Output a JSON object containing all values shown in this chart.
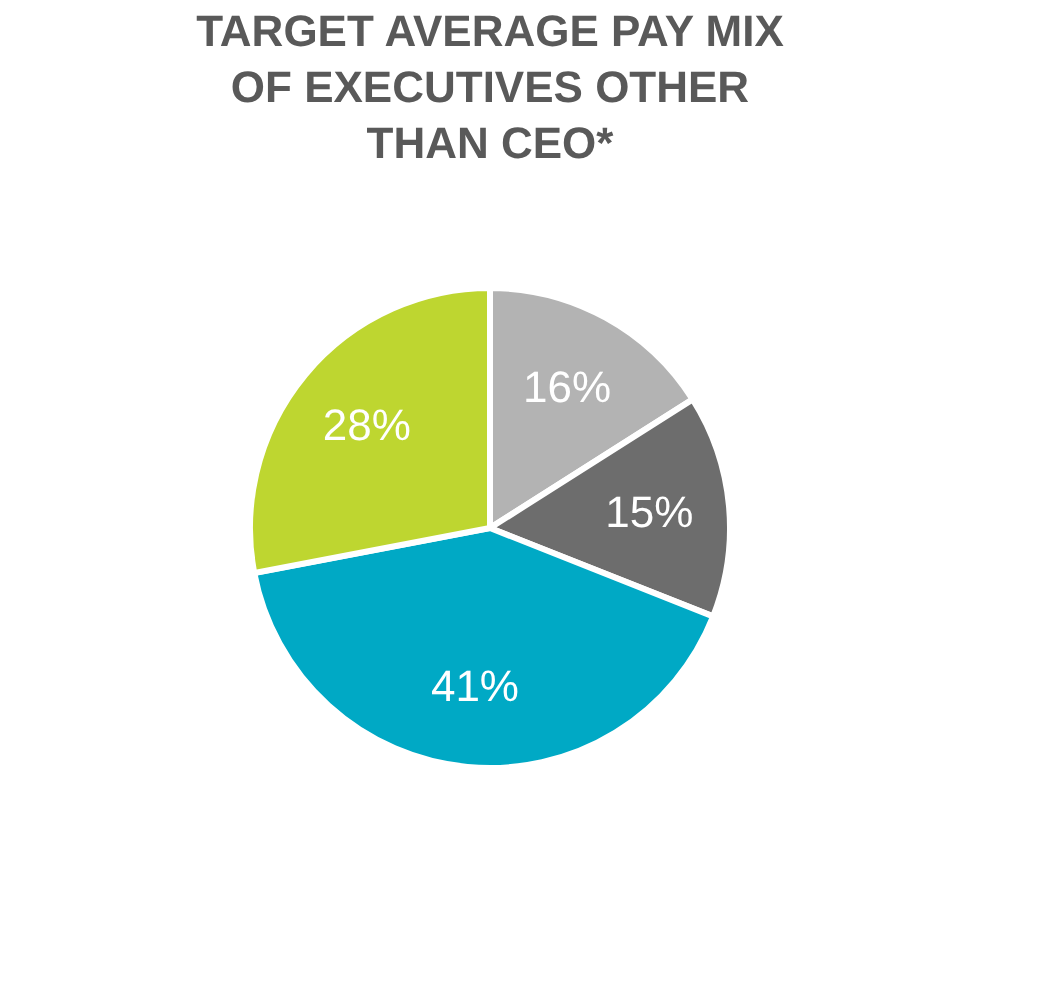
{
  "chart_data": {
    "type": "pie",
    "title": "TARGET AVERAGE PAY MIX OF EXECUTIVES OTHER THAN CEO*",
    "categories": [
      null,
      null,
      null,
      null
    ],
    "values": [
      16,
      15,
      41,
      28
    ],
    "colors": [
      "#b3b3b3",
      "#6d6d6d",
      "#00a9c5",
      "#bed630"
    ],
    "value_labels": [
      "16%",
      "15%",
      "41%",
      "28%"
    ],
    "legend": false
  }
}
